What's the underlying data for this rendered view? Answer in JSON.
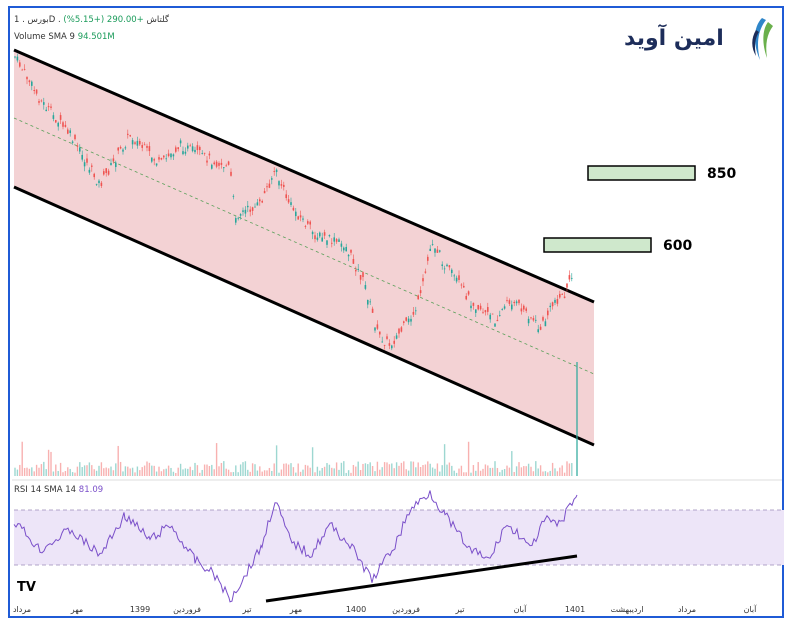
{
  "header": {
    "symbol_line": "بورس . 1D . گلتاش",
    "change": "+290.00 (+5.15%)",
    "volume_label": "Volume SMA 9",
    "volume_value": "94.501M"
  },
  "rsi_panel": {
    "label": "RSI 14 SMA 14",
    "value": "81.09"
  },
  "logo": {
    "text": "امین آوید"
  },
  "colors": {
    "frame": "#1f5bd6",
    "channel_fill": "#f0c7c9",
    "target_fill": "#cfe8cc",
    "rsi_band": "#ede5f8",
    "rsi_line": "#7a4fc9",
    "up": "#26a69a",
    "down": "#ef5350"
  },
  "chart_data": {
    "type": "candlestick",
    "x_ticks": [
      "مرداد",
      "مهر",
      "1399",
      "فروردین",
      "تیر",
      "مهر",
      "1400",
      "فروردین",
      "تیر",
      "آبان",
      "1401",
      "اردیبهشت",
      "مرداد",
      "آبان"
    ],
    "targets": [
      {
        "label": "850",
        "value": 850
      },
      {
        "label": "600",
        "value": 600
      }
    ],
    "annotations": [
      "descending channel",
      "RSI rising support line"
    ],
    "rsi": {
      "period": 14,
      "value": 81.09
    }
  }
}
